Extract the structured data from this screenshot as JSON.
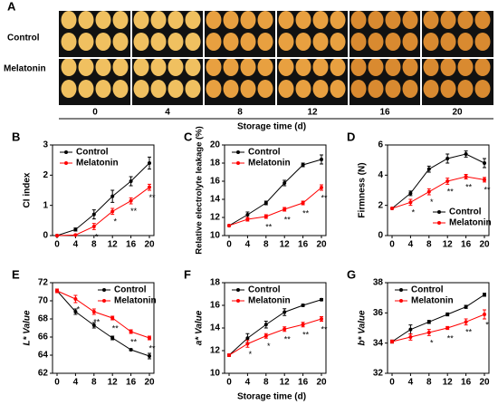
{
  "photo_panel": {
    "label": "A",
    "rows": [
      "Control",
      "Melatonin"
    ],
    "days": [
      0,
      4,
      8,
      12,
      16,
      20
    ],
    "xlabel": "Storage time (d)"
  },
  "x_axis_label": "Storage time (d)",
  "chart_data": [
    {
      "type": "line",
      "panel": "B",
      "ylabel": "CI index",
      "x": [
        0,
        4,
        8,
        12,
        16,
        20
      ],
      "xlim": [
        0,
        20
      ],
      "xticks": [
        0,
        4,
        8,
        12,
        16,
        20
      ],
      "ylim": [
        0,
        3
      ],
      "yticks": [
        0,
        1,
        2,
        3
      ],
      "legend": "upper left",
      "series": [
        {
          "name": "Control",
          "color": "#000000",
          "values": [
            0,
            0.2,
            0.7,
            1.3,
            1.8,
            2.4
          ],
          "errors": [
            0.02,
            0.05,
            0.15,
            0.2,
            0.15,
            0.2
          ]
        },
        {
          "name": "Melatonin",
          "color": "#ff0000",
          "values": [
            0,
            0.02,
            0.3,
            0.8,
            1.15,
            1.6
          ],
          "errors": [
            0.02,
            0.02,
            0.1,
            0.1,
            0.1,
            0.1
          ],
          "significance": [
            null,
            null,
            "*",
            "*",
            "**",
            "**"
          ]
        }
      ]
    },
    {
      "type": "line",
      "panel": "C",
      "ylabel": "Relative electrolyte leakage (%)",
      "x": [
        0,
        4,
        8,
        12,
        16,
        20
      ],
      "xlim": [
        0,
        20
      ],
      "xticks": [
        0,
        4,
        8,
        12,
        16,
        20
      ],
      "ylim": [
        10,
        20
      ],
      "yticks": [
        10,
        12,
        14,
        16,
        18,
        20
      ],
      "legend": "upper left",
      "series": [
        {
          "name": "Control",
          "color": "#000000",
          "values": [
            11.1,
            12.3,
            13.6,
            15.8,
            17.8,
            18.4
          ],
          "errors": [
            0.1,
            0.3,
            0.2,
            0.3,
            0.2,
            0.5
          ]
        },
        {
          "name": "Melatonin",
          "color": "#ff0000",
          "values": [
            11.1,
            11.8,
            12.1,
            12.9,
            13.6,
            15.3
          ],
          "errors": [
            0.1,
            0.2,
            0.2,
            0.2,
            0.2,
            0.3
          ],
          "significance": [
            null,
            null,
            "**",
            "**",
            "**",
            "**"
          ]
        }
      ]
    },
    {
      "type": "line",
      "panel": "D",
      "ylabel": "Firmness (N)",
      "x": [
        0,
        4,
        8,
        12,
        16,
        20
      ],
      "xlim": [
        0,
        20
      ],
      "xticks": [
        0,
        4,
        8,
        12,
        16,
        20
      ],
      "ylim": [
        0,
        6
      ],
      "yticks": [
        0,
        2,
        4,
        6
      ],
      "legend": "lower right",
      "series": [
        {
          "name": "Control",
          "color": "#000000",
          "values": [
            1.8,
            2.8,
            4.4,
            5.1,
            5.4,
            4.8
          ],
          "errors": [
            0.05,
            0.15,
            0.2,
            0.3,
            0.2,
            0.3
          ]
        },
        {
          "name": "Melatonin",
          "color": "#ff0000",
          "values": [
            1.8,
            2.2,
            2.9,
            3.6,
            3.9,
            3.7
          ],
          "errors": [
            0.05,
            0.2,
            0.2,
            0.2,
            0.15,
            0.15
          ],
          "significance": [
            null,
            "*",
            "*",
            "**",
            "**",
            "**"
          ]
        }
      ]
    },
    {
      "type": "line",
      "panel": "E",
      "ylabel": "L* Value",
      "x": [
        0,
        4,
        8,
        12,
        16,
        20
      ],
      "xlim": [
        0,
        20
      ],
      "xticks": [
        0,
        4,
        8,
        12,
        16,
        20
      ],
      "ylim": [
        62,
        72
      ],
      "yticks": [
        62,
        64,
        66,
        68,
        70,
        72
      ],
      "legend": "upper right",
      "series": [
        {
          "name": "Control",
          "color": "#000000",
          "values": [
            71.1,
            68.8,
            67.3,
            65.9,
            64.6,
            63.9
          ],
          "errors": [
            0.2,
            0.3,
            0.3,
            0.2,
            0.1,
            0.3
          ]
        },
        {
          "name": "Melatonin",
          "color": "#ff0000",
          "values": [
            71.1,
            70.2,
            68.8,
            68.1,
            66.6,
            65.9
          ],
          "errors": [
            0.2,
            0.4,
            0.3,
            0.2,
            0.2,
            0.2
          ],
          "significance": [
            null,
            "*",
            "**",
            "**",
            "**",
            "**"
          ]
        }
      ]
    },
    {
      "type": "line",
      "panel": "F",
      "ylabel": "a* Value",
      "x": [
        0,
        4,
        8,
        12,
        16,
        20
      ],
      "xlim": [
        0,
        20
      ],
      "xticks": [
        0,
        4,
        8,
        12,
        16,
        20
      ],
      "ylim": [
        10,
        18
      ],
      "yticks": [
        10,
        12,
        14,
        16,
        18
      ],
      "legend": "upper left",
      "series": [
        {
          "name": "Control",
          "color": "#000000",
          "values": [
            11.6,
            13.1,
            14.3,
            15.4,
            16,
            16.5
          ],
          "errors": [
            0.1,
            0.4,
            0.3,
            0.3,
            0.1,
            0.1
          ]
        },
        {
          "name": "Melatonin",
          "color": "#ff0000",
          "values": [
            11.6,
            12.6,
            13.3,
            13.9,
            14.3,
            14.8
          ],
          "errors": [
            0.1,
            0.3,
            0.2,
            0.2,
            0.2,
            0.2
          ],
          "significance": [
            null,
            "*",
            "*",
            "**",
            "**",
            "**"
          ]
        }
      ]
    },
    {
      "type": "line",
      "panel": "G",
      "ylabel": "b* Value",
      "x": [
        0,
        4,
        8,
        12,
        16,
        20
      ],
      "xlim": [
        0,
        20
      ],
      "xticks": [
        0,
        4,
        8,
        12,
        16,
        20
      ],
      "ylim": [
        32,
        38
      ],
      "yticks": [
        32,
        34,
        36,
        38
      ],
      "legend": "upper left",
      "series": [
        {
          "name": "Control",
          "color": "#000000",
          "values": [
            34.1,
            34.9,
            35.4,
            35.9,
            36.4,
            37.2
          ],
          "errors": [
            0.1,
            0.3,
            0.1,
            0.1,
            0.1,
            0.1
          ]
        },
        {
          "name": "Melatonin",
          "color": "#ff0000",
          "values": [
            34.1,
            34.4,
            34.7,
            35.0,
            35.4,
            35.9
          ],
          "errors": [
            0.1,
            0.2,
            0.2,
            0.1,
            0.2,
            0.3
          ],
          "significance": [
            null,
            null,
            "*",
            "**",
            "**",
            "*"
          ]
        }
      ]
    }
  ]
}
